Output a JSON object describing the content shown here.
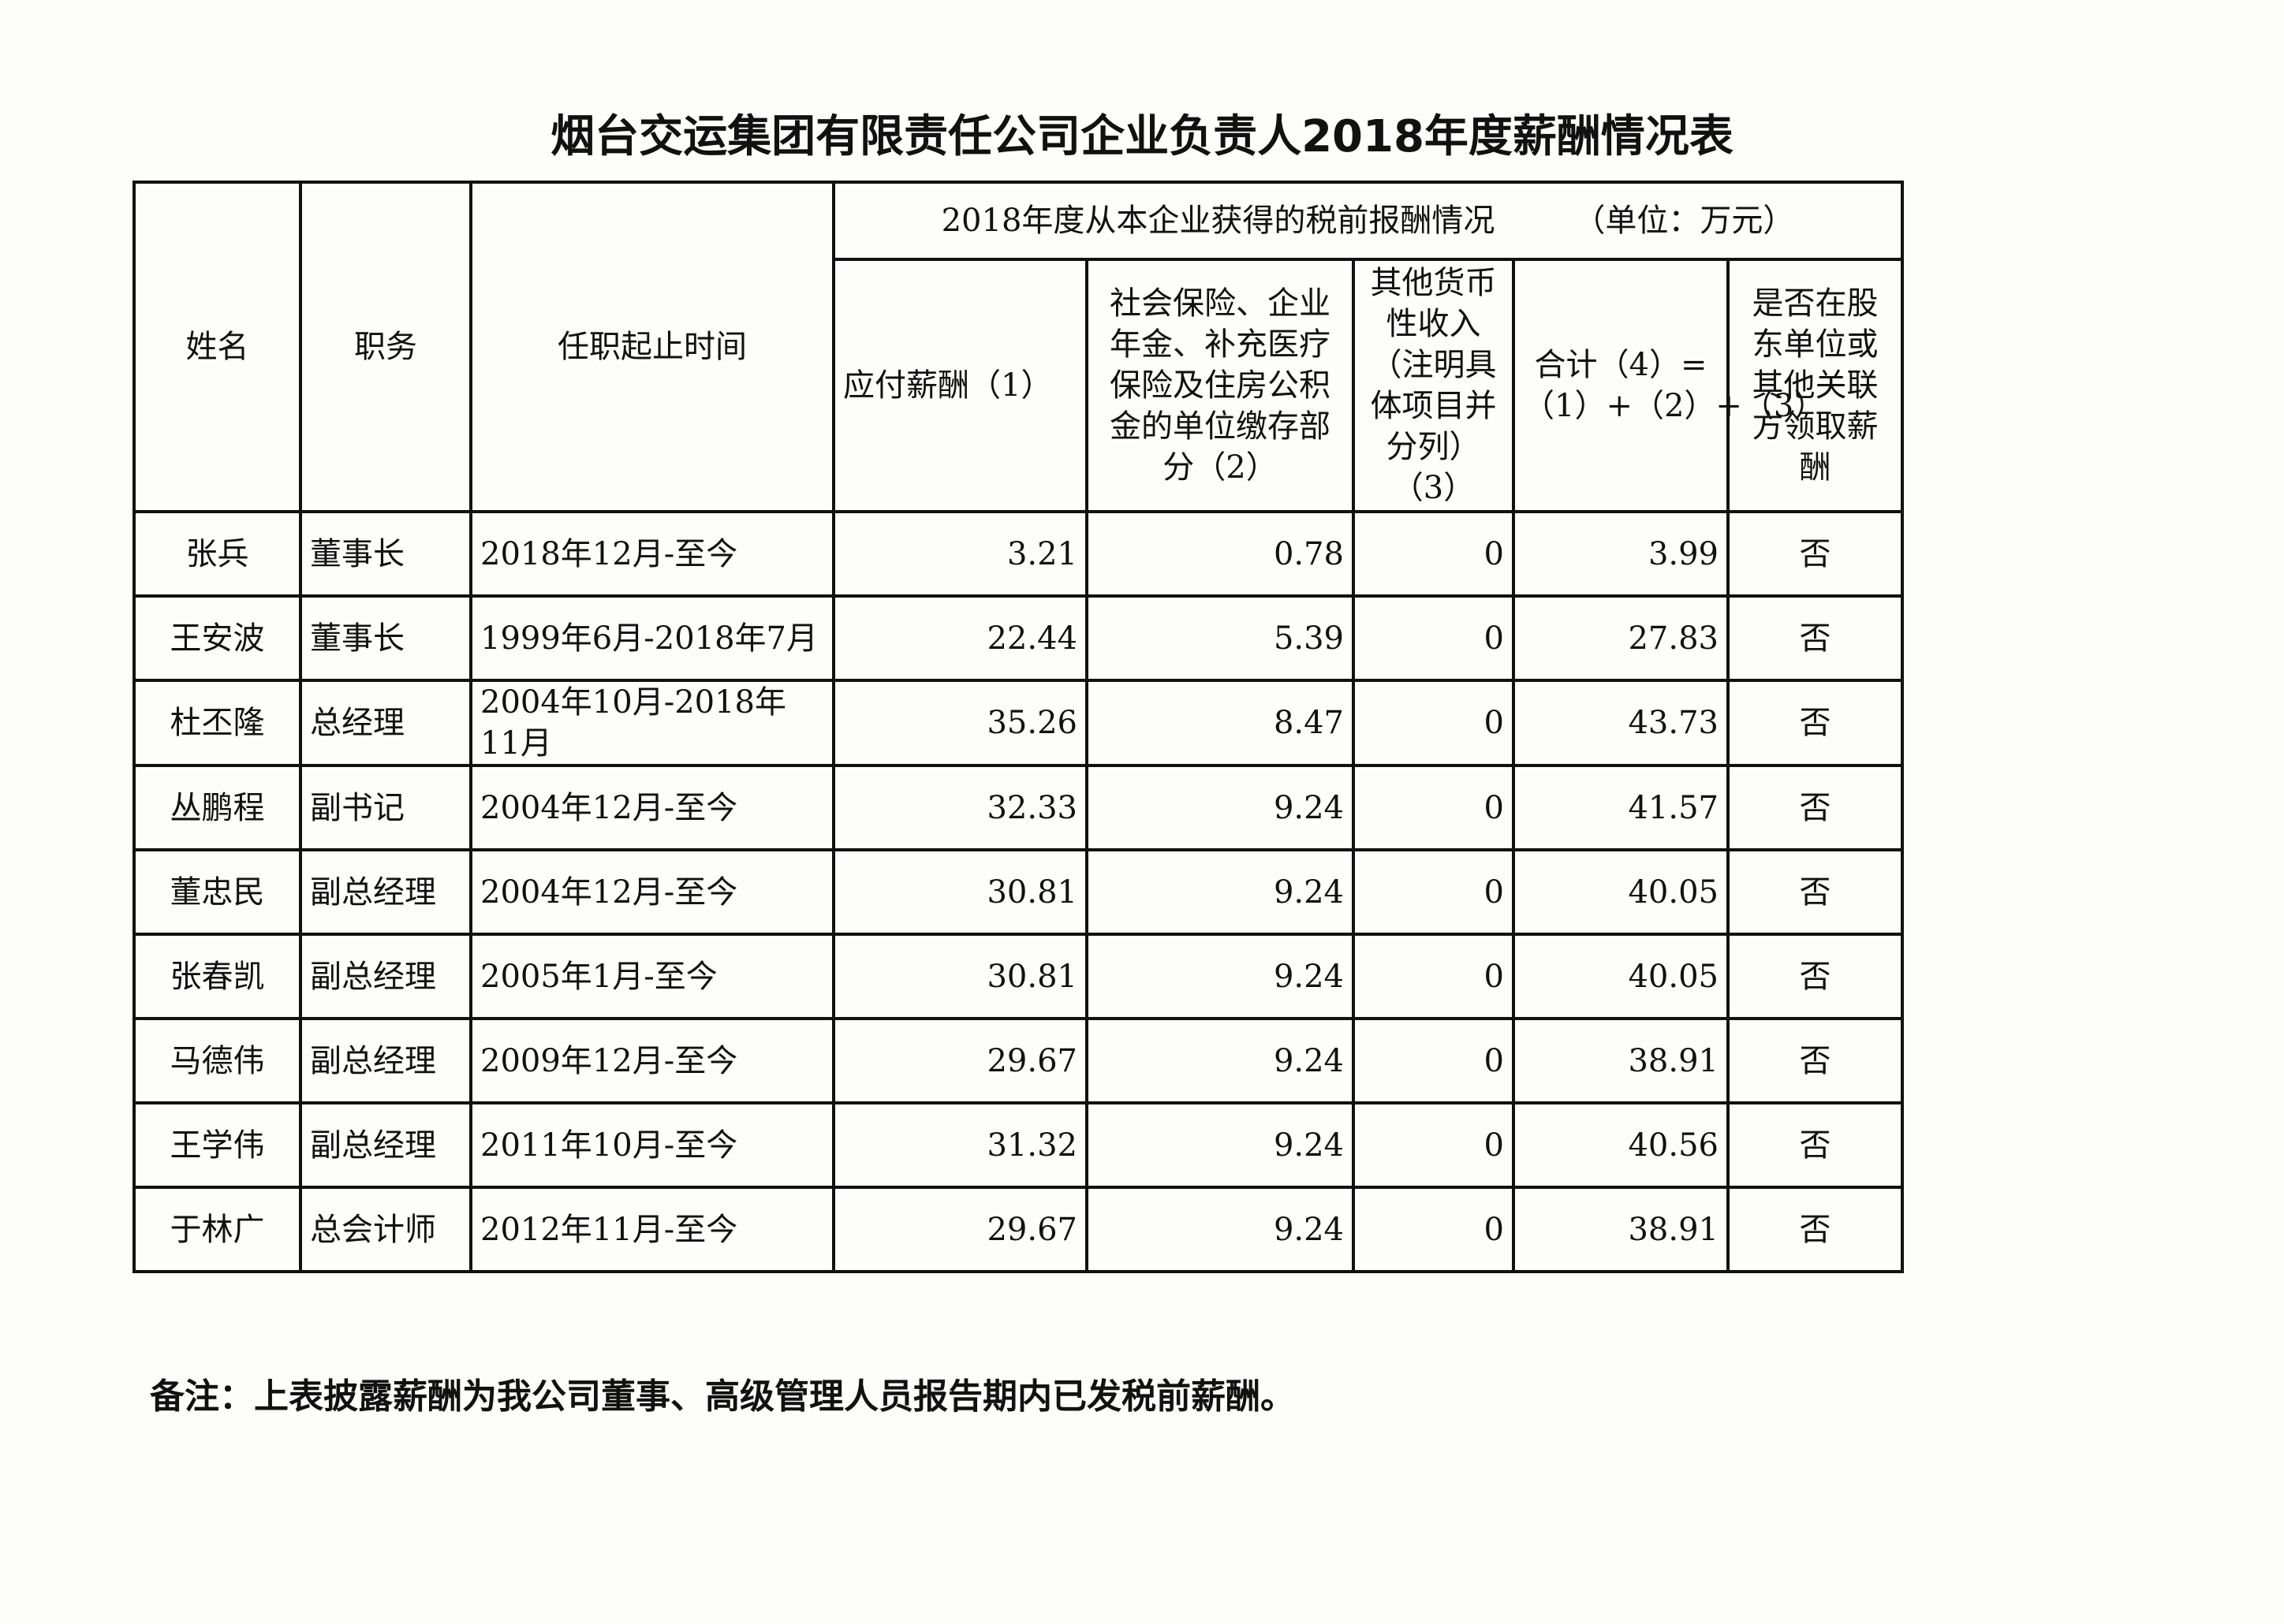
{
  "title": "烟台交运集团有限责任公司企业负责人2018年度薪酬情况表",
  "headers": {
    "name": "姓名",
    "position": "职务",
    "term": "任职起止时间",
    "group": "2018年度从本企业获得的税前报酬情况　　　（单位：万元）",
    "salary": "应付薪酬（1）",
    "insurance": "社会保险、企业年金、补充医疗保险及住房公积金的单位缴存部分（2）",
    "other": "其他货币性收入（注明具体项目并分列）（3）",
    "total": "合计（4）=（1）+（2）+（3）",
    "shareholder": "是否在股东单位或其他关联方领取薪酬"
  },
  "rows": [
    {
      "name": "张兵",
      "position": "董事长",
      "term": "2018年12月-至今",
      "salary": "3.21",
      "insurance": "0.78",
      "other": "0",
      "total": "3.99",
      "shareholder": "否"
    },
    {
      "name": "王安波",
      "position": "董事长",
      "term": "1999年6月-2018年7月",
      "salary": "22.44",
      "insurance": "5.39",
      "other": "0",
      "total": "27.83",
      "shareholder": "否"
    },
    {
      "name": "杜丕隆",
      "position": "总经理",
      "term": "2004年10月-2018年11月",
      "salary": "35.26",
      "insurance": "8.47",
      "other": "0",
      "total": "43.73",
      "shareholder": "否"
    },
    {
      "name": "丛鹏程",
      "position": "副书记",
      "term": "2004年12月-至今",
      "salary": "32.33",
      "insurance": "9.24",
      "other": "0",
      "total": "41.57",
      "shareholder": "否"
    },
    {
      "name": "董忠民",
      "position": "副总经理",
      "term": "2004年12月-至今",
      "salary": "30.81",
      "insurance": "9.24",
      "other": "0",
      "total": "40.05",
      "shareholder": "否"
    },
    {
      "name": "张春凯",
      "position": "副总经理",
      "term": "2005年1月-至今",
      "salary": "30.81",
      "insurance": "9.24",
      "other": "0",
      "total": "40.05",
      "shareholder": "否"
    },
    {
      "name": "马德伟",
      "position": "副总经理",
      "term": "2009年12月-至今",
      "salary": "29.67",
      "insurance": "9.24",
      "other": "0",
      "total": "38.91",
      "shareholder": "否"
    },
    {
      "name": "王学伟",
      "position": "副总经理",
      "term": "2011年10月-至今",
      "salary": "31.32",
      "insurance": "9.24",
      "other": "0",
      "total": "40.56",
      "shareholder": "否"
    },
    {
      "name": "于林广",
      "position": "总会计师",
      "term": "2012年11月-至今",
      "salary": "29.67",
      "insurance": "9.24",
      "other": "0",
      "total": "38.91",
      "shareholder": "否"
    }
  ],
  "note": "备注：上表披露薪酬为我公司董事、高级管理人员报告期内已发税前薪酬。"
}
